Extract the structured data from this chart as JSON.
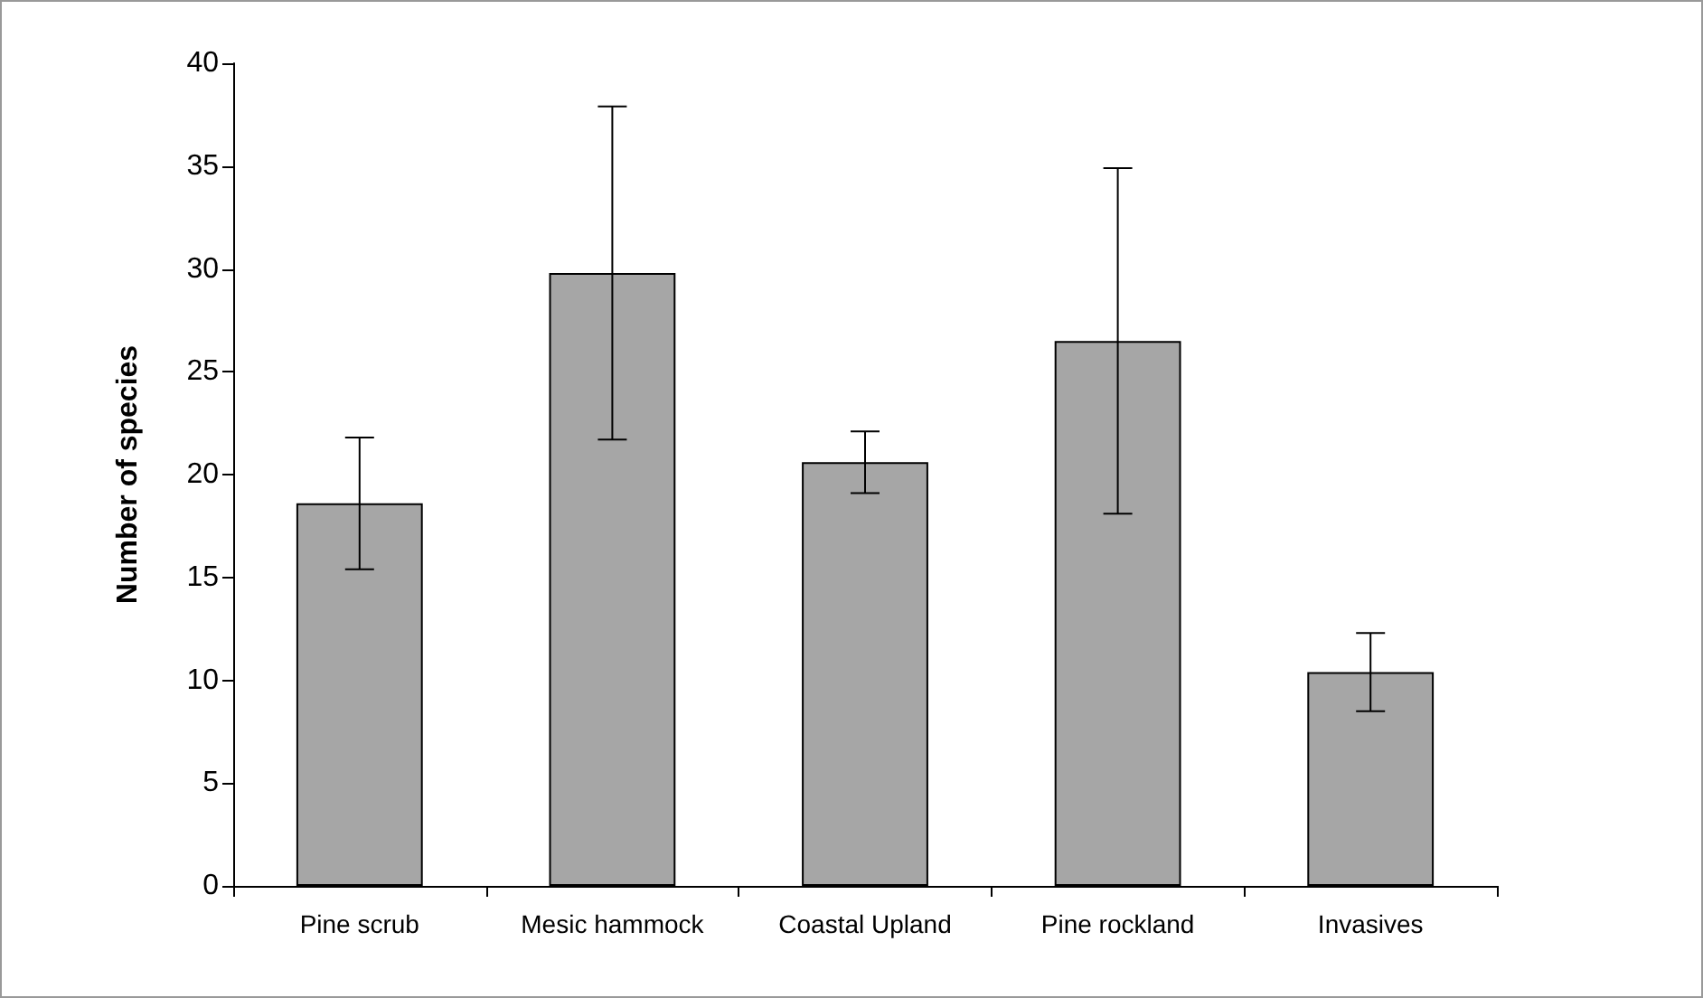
{
  "chart_data": {
    "type": "bar",
    "ylabel": "Number of species",
    "categories": [
      "Pine scrub",
      "Mesic hammock",
      "Coastal Upland",
      "Pine rockland",
      "Invasives"
    ],
    "values": [
      18.6,
      29.8,
      20.6,
      26.5,
      10.4
    ],
    "errors": [
      3.2,
      8.1,
      1.5,
      8.4,
      1.9
    ],
    "color": "#a6a6a6",
    "ylim": [
      0,
      40
    ],
    "yticks": [
      0,
      5,
      10,
      15,
      20,
      25,
      30,
      35,
      40
    ],
    "grid": false
  }
}
